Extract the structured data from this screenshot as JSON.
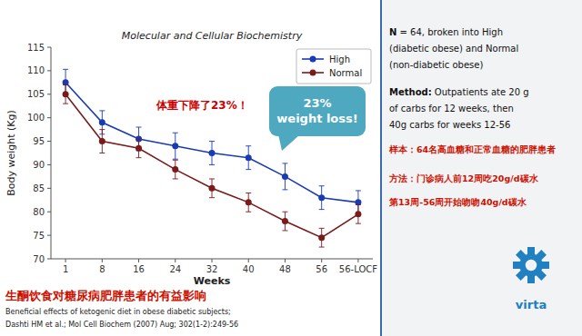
{
  "chart_data": {
    "type": "line",
    "title": "Molecular and Cellular Biochemistry",
    "x_label": "Weeks",
    "y_label": "Body weight (Kg)",
    "categories": [
      "1",
      "8",
      "16",
      "24",
      "32",
      "40",
      "48",
      "56",
      "56-LOCF"
    ],
    "series": [
      {
        "name": "High",
        "color": "#1a3ab5",
        "marker": "circle",
        "line_style": "solid",
        "values": [
          107.5,
          99.0,
          95.5,
          94.0,
          92.5,
          91.5,
          87.5,
          83.0,
          82.0
        ],
        "errors": [
          2.8,
          2.5,
          2.5,
          2.8,
          2.5,
          2.5,
          2.8,
          2.5,
          2.5
        ]
      },
      {
        "name": "Normal",
        "color": "#7a1a1a",
        "marker": "circle",
        "line_style": "solid",
        "values": [
          105.0,
          95.0,
          93.5,
          89.0,
          85.0,
          82.0,
          78.0,
          74.5,
          79.5
        ],
        "errors": [
          2.0,
          2.5,
          2.0,
          2.0,
          2.0,
          2.0,
          2.0,
          2.0,
          2.0
        ]
      }
    ],
    "ylim": [
      70,
      115
    ],
    "yticks": [
      70,
      75,
      80,
      85,
      90,
      95,
      100,
      105,
      110,
      115
    ],
    "grid": false,
    "legend": "upper right",
    "annotations": [
      "体重下降了23%！",
      "23%\nweight loss!",
      "生酮饮食对糖尿病肥胖患者的有益影响",
      "Beneficial effects of ketogenic diet in obese diabetic subjects;",
      "Dashti HM et al.; Mol Cell Biochem (2007) Aug; 302(1-2):249-56",
      "N",
      " = 64, broken into High",
      "(diabetic obese) and Normal",
      "(non-diabetic obese)",
      "Method:",
      " Outpatients ate 20 g",
      "of carbs for 12 weeks, then",
      "40g carbs for weeks 12-56",
      "样本：64名高血糖和正常血糖的肥胖患者",
      "方法：门诊病人前12周吃20g/d碳水",
      "第13周-56周开始吻吻40g/d碳水",
      "virta"
    ]
  }
}
